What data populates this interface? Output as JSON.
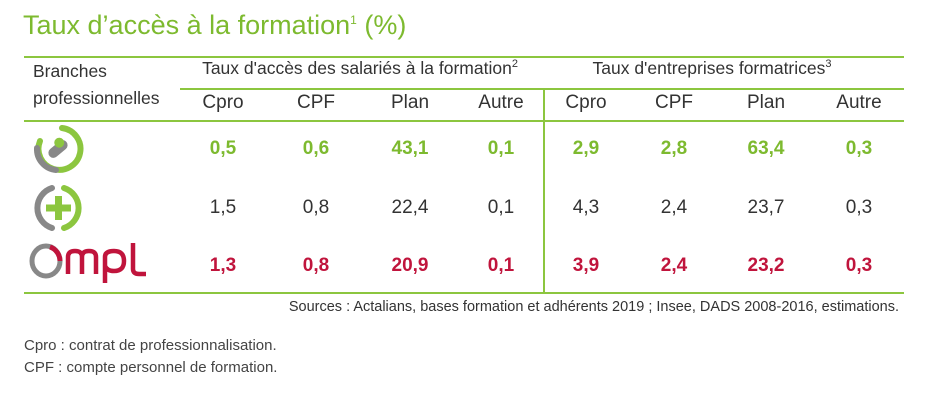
{
  "title": {
    "text": "Taux d’accès à la formation",
    "sup": "1",
    "suffix": " (%)"
  },
  "header": {
    "branch_line1": "Branches",
    "branch_line2": "professionnelles",
    "group1": {
      "text": "Taux d'accès des salariés à la formation",
      "sup": "2"
    },
    "group2": {
      "text": "Taux d'entreprises formatrices",
      "sup": "3"
    },
    "columns": [
      "Cpro",
      "CPF",
      "Plan",
      "Autre",
      "Cpro",
      "CPF",
      "Plan",
      "Autre"
    ]
  },
  "rows": [
    {
      "logo": "pharmacy-capsule-logo",
      "values": [
        "0,5",
        "0,6",
        "43,1",
        "0,1",
        "2,9",
        "2,8",
        "63,4",
        "0,3"
      ]
    },
    {
      "logo": "green-cross-logo",
      "values": [
        "1,5",
        "0,8",
        "22,4",
        "0,1",
        "4,3",
        "2,4",
        "23,7",
        "0,3"
      ]
    },
    {
      "logo": "ompl-logo",
      "logo_text": "Ompl",
      "values": [
        "1,3",
        "0,8",
        "20,9",
        "0,1",
        "3,9",
        "2,4",
        "23,2",
        "0,3"
      ]
    }
  ],
  "colors": {
    "green": "#7dba2f",
    "red": "#c0143c",
    "text": "#333333"
  },
  "sources": "Sources : Actalians, bases formation et adhérents 2019 ; Insee, DADS 2008-2016, estimations.",
  "notes": [
    "Cpro : contrat de professionnalisation.",
    "CPF : compte personnel de formation."
  ]
}
